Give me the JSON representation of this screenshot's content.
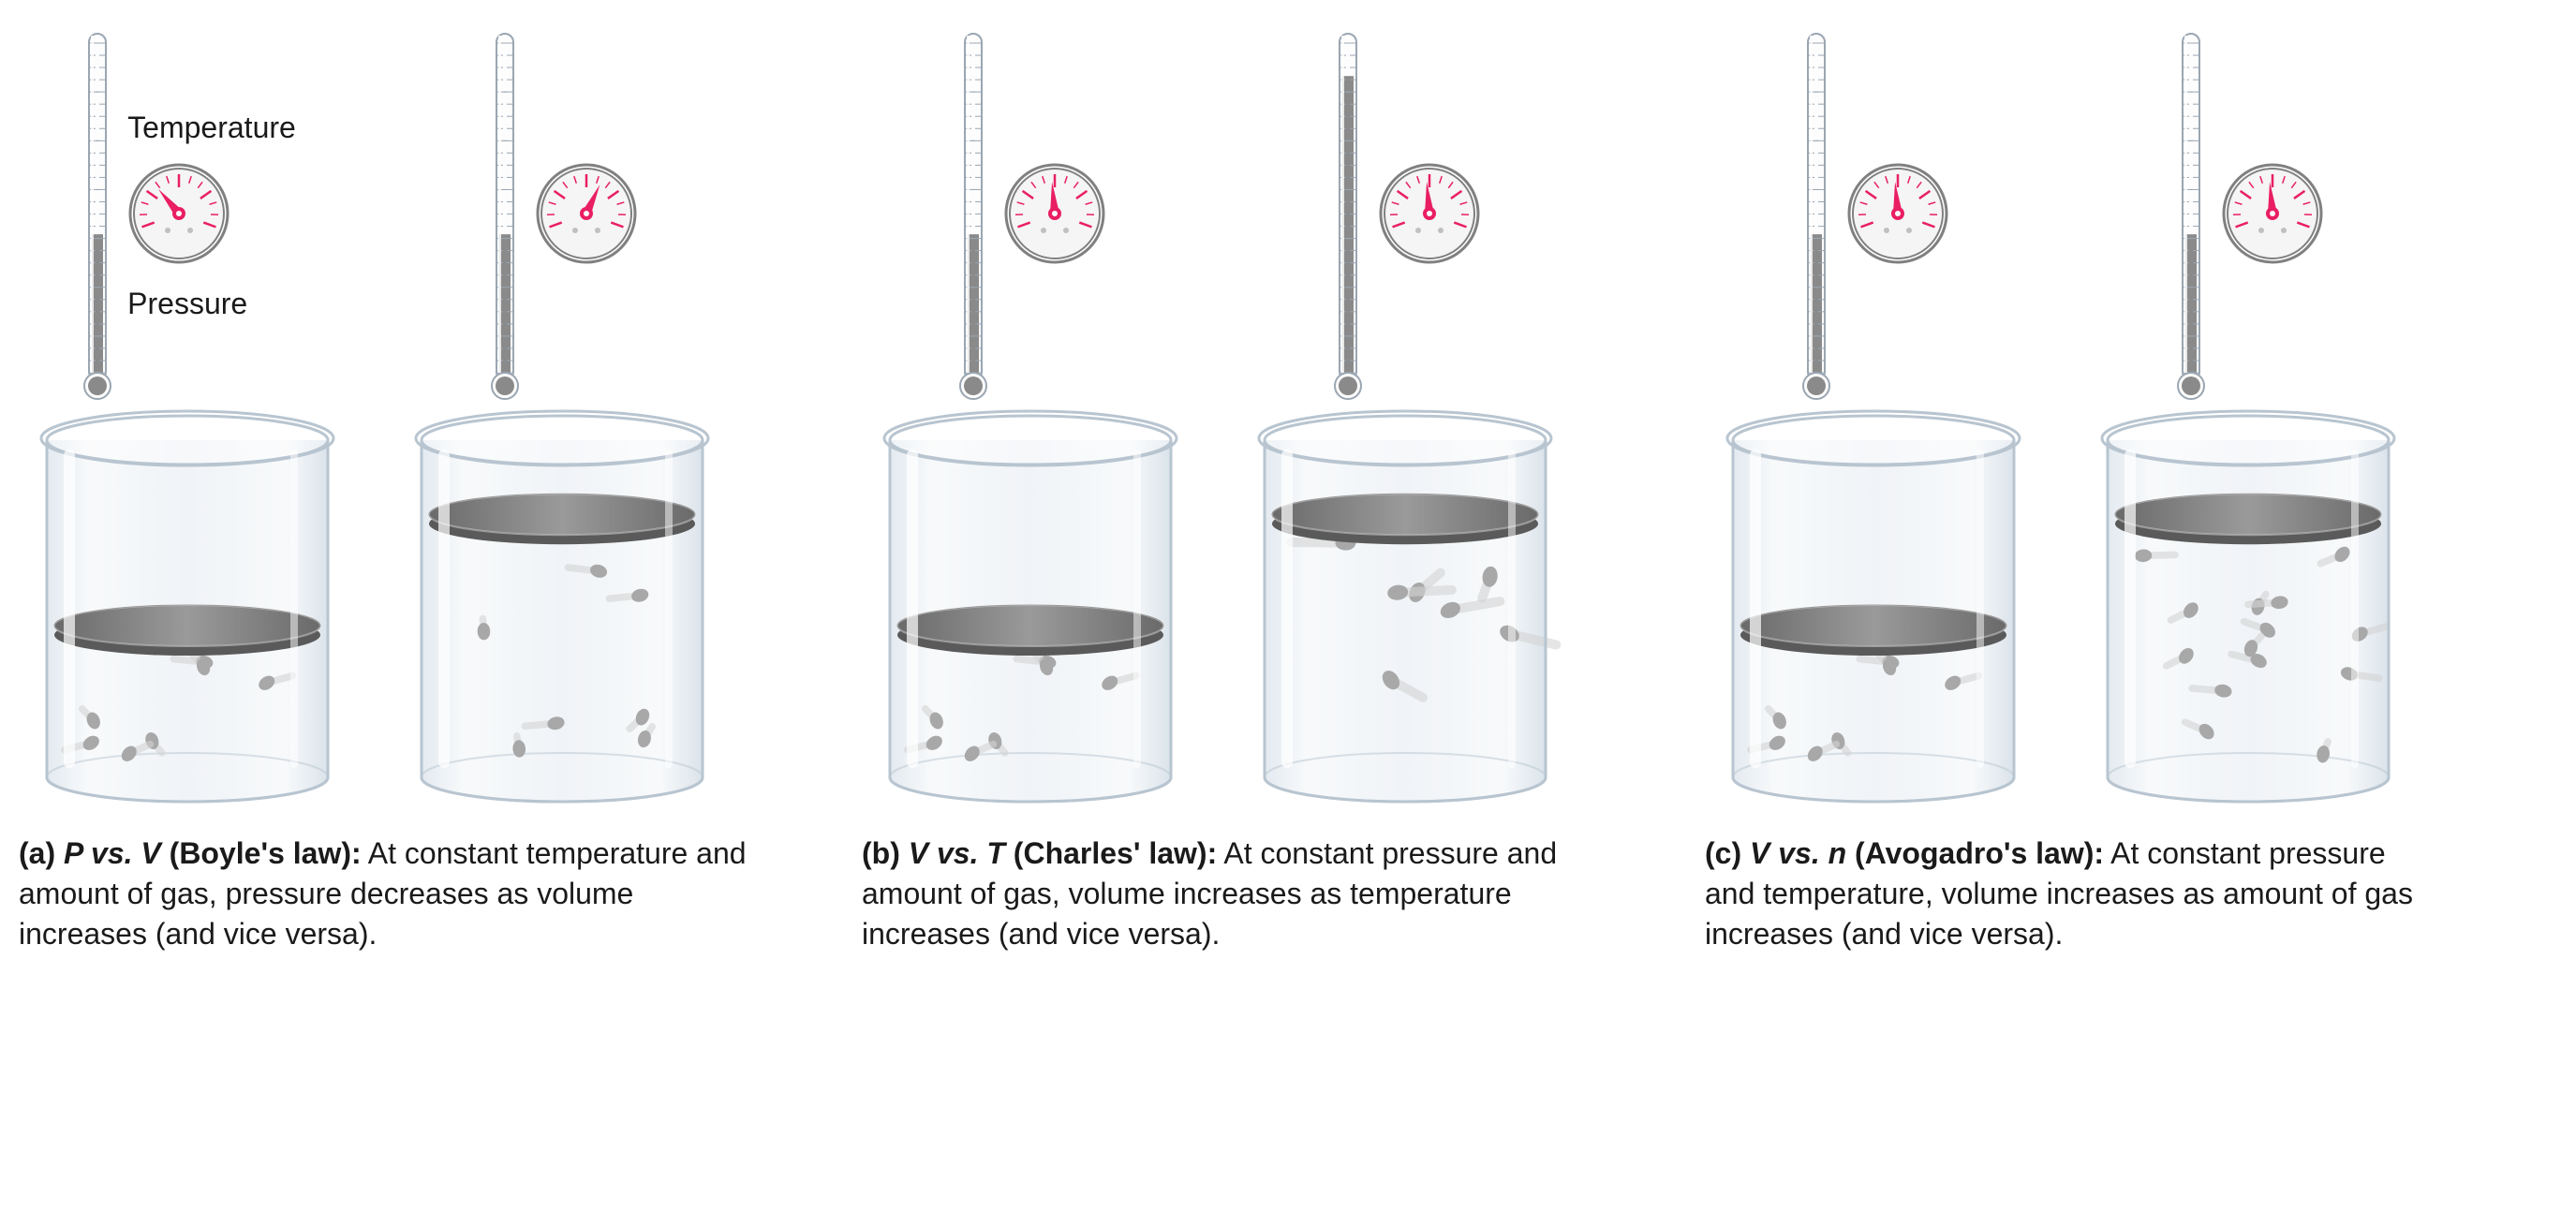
{
  "labels": {
    "temperature": "Temperature",
    "pressure": "Pressure"
  },
  "colors": {
    "glass_outline": "#b8c5d0",
    "glass_fill": "#eef2f6",
    "glass_highlight": "#ffffff",
    "piston": "#808080",
    "piston_dark": "#5a5a5a",
    "particle": "#a8a8a8",
    "particle_trail": "#d4d4d4",
    "gauge_ring": "#808080",
    "gauge_face": "#f5f5f5",
    "gauge_needle": "#e91e63",
    "gauge_ticks": "#e91e63",
    "thermo_outline": "#9aa6b2",
    "thermo_fill": "#8a8a8a",
    "text": "#1a1a1a"
  },
  "laws": [
    {
      "id": "boyle",
      "show_labels": true,
      "panels": [
        {
          "thermo_level": 0.42,
          "gauge_angle": -40,
          "piston_y": 0.55,
          "particle_count": 7,
          "particle_speed": 0.4
        },
        {
          "thermo_level": 0.42,
          "gauge_angle": 25,
          "piston_y": 0.22,
          "particle_count": 7,
          "particle_speed": 0.4
        }
      ],
      "caption_lead_vars": "P vs. V",
      "caption_lead_law": " (Boyle's law):",
      "caption_body": " At constant temperature and amount of gas, pressure decreases as volume increases (and vice versa)."
    },
    {
      "id": "charles",
      "show_labels": false,
      "panels": [
        {
          "thermo_level": 0.42,
          "gauge_angle": -5,
          "piston_y": 0.55,
          "particle_count": 7,
          "particle_speed": 0.4
        },
        {
          "thermo_level": 0.9,
          "gauge_angle": -5,
          "piston_y": 0.22,
          "particle_count": 7,
          "particle_speed": 1.0
        }
      ],
      "caption_lead_vars": "V vs. T",
      "caption_lead_law": " (Charles' law):",
      "caption_body": " At constant pressure and amount of gas, volume increases as temperature increases (and vice versa)."
    },
    {
      "id": "avogadro",
      "show_labels": false,
      "panels": [
        {
          "thermo_level": 0.42,
          "gauge_angle": -5,
          "piston_y": 0.55,
          "particle_count": 7,
          "particle_speed": 0.4
        },
        {
          "thermo_level": 0.42,
          "gauge_angle": -5,
          "piston_y": 0.22,
          "particle_count": 14,
          "particle_speed": 0.4
        }
      ],
      "caption_lead_vars": "V vs. n",
      "caption_lead_law": " (Avogadro's law):",
      "caption_body": " At constant pressure and temperature, volume increases as amount of gas increases (and vice versa)."
    }
  ],
  "caption_prefixes": [
    "(a) ",
    "(b) ",
    "(c) "
  ]
}
